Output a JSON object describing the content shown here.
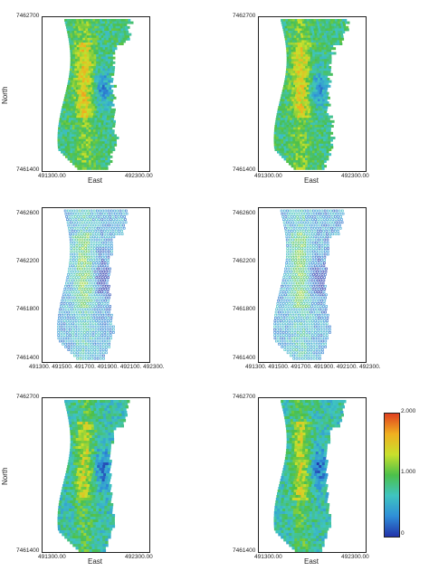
{
  "chart_data": [
    {
      "type": "heatmap",
      "style": "pixel",
      "seed": 1,
      "xlabel": "East",
      "ylabel": "North",
      "xlim": [
        491300,
        492300
      ],
      "ylim": [
        7461400,
        7462700
      ],
      "x_ticks": [
        "491300.00",
        "492300.00"
      ],
      "y_ticks": [
        "7462700",
        "7461400"
      ]
    },
    {
      "type": "heatmap",
      "style": "pixel",
      "seed": 2,
      "xlabel": "East",
      "ylabel": "",
      "xlim": [
        491300,
        492300
      ],
      "ylim": [
        7461400,
        7462700
      ],
      "x_ticks": [
        "491300.00",
        "492300.00"
      ],
      "y_ticks": [
        "7462700",
        "7461400"
      ]
    },
    {
      "type": "heatmap",
      "style": "grid",
      "seed": 3,
      "xlabel": "",
      "ylabel": "",
      "xlim": [
        491300,
        492300
      ],
      "ylim": [
        7461400,
        7462700
      ],
      "x_ticks": [
        "491300.",
        "491500.",
        "491700.",
        "491900.",
        "492100.",
        "492300."
      ],
      "y_ticks": [
        "7462600",
        "7462200",
        "7461800",
        "7461400"
      ]
    },
    {
      "type": "heatmap",
      "style": "grid",
      "seed": 4,
      "xlabel": "",
      "ylabel": "",
      "xlim": [
        491300,
        492300
      ],
      "ylim": [
        7461400,
        7462700
      ],
      "x_ticks": [
        "491300.",
        "491500.",
        "491700.",
        "491900.",
        "492100.",
        "492300."
      ],
      "y_ticks": [
        "7462600",
        "7462200",
        "7461800",
        "7461400"
      ]
    },
    {
      "type": "heatmap",
      "style": "smooth",
      "seed": 5,
      "xlabel": "East",
      "ylabel": "North",
      "xlim": [
        491300,
        492300
      ],
      "ylim": [
        7461400,
        7462700
      ],
      "x_ticks": [
        "491300.00",
        "492300.00"
      ],
      "y_ticks": [
        "7462700",
        "7461400"
      ]
    },
    {
      "type": "heatmap",
      "style": "smooth",
      "seed": 6,
      "xlabel": "East",
      "ylabel": "",
      "xlim": [
        491300,
        492300
      ],
      "ylim": [
        7461400,
        7462700
      ],
      "x_ticks": [
        "491300.00",
        "492300.00"
      ],
      "y_ticks": [
        "7462700",
        "7461400"
      ]
    }
  ],
  "colorbar": {
    "labels": [
      "2.000",
      "1.000",
      "0"
    ],
    "colors": [
      "#2233aa",
      "#2f8fd8",
      "#3fc4c0",
      "#4cc04a",
      "#c8e02c",
      "#f0b020",
      "#e04020"
    ]
  }
}
